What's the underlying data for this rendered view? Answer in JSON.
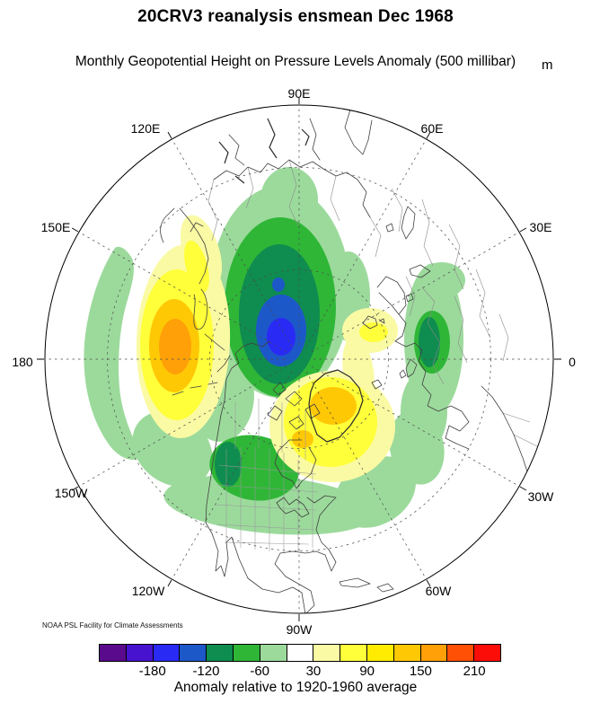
{
  "title": "20CRV3 reanalysis ensmean Dec 1968",
  "subtitle": "Monthly Geopotential Height on Pressure Levels Anomaly (500 millibar)",
  "units_label": "m",
  "credit": "NOAA PSL Facility for Climate Assessments",
  "map": {
    "lon_labels": [
      "90E",
      "60E",
      "30E",
      "0",
      "30W",
      "60W",
      "90W",
      "120W",
      "150W",
      "180",
      "150E",
      "120E"
    ]
  },
  "colorbar": {
    "caption": "Anomaly relative to 1920-1960 average",
    "tick_labels": [
      "-180",
      "-120",
      "-60",
      "30",
      "90",
      "150",
      "210"
    ],
    "tick_boundary_indices": [
      2,
      4,
      6,
      8,
      10,
      12,
      14
    ],
    "colors": [
      "#5A0A8C",
      "#4713CF",
      "#2A2AF5",
      "#1D58C9",
      "#0F8C4F",
      "#2FB637",
      "#9CDA9C",
      "#FFFFFF",
      "#FAFAA4",
      "#FFFF3A",
      "#FFEC00",
      "#FFC805",
      "#FFA008",
      "#FF5005",
      "#FC0D07"
    ]
  },
  "chart_data": {
    "type": "heatmap",
    "subtype": "filled_contour_map",
    "dataset": "20CRV3 reanalysis ensmean",
    "month": "Dec 1968",
    "variable": "Monthly Geopotential Height on Pressure Levels Anomaly",
    "pressure_level": "500 millibar",
    "units": "m",
    "baseline": "1920-1960 average",
    "projection": "north_polar_stereographic",
    "map_extent_min_latitude_deg": 15,
    "levels_m": [
      -210,
      -180,
      -150,
      -120,
      -90,
      -60,
      -30,
      30,
      60,
      90,
      120,
      150,
      180,
      210
    ],
    "palette": [
      "#5A0A8C",
      "#4713CF",
      "#2A2AF5",
      "#1D58C9",
      "#0F8C4F",
      "#2FB637",
      "#9CDA9C",
      "#FFFFFF",
      "#FAFAA4",
      "#FFFF3A",
      "#FFEC00",
      "#FFC805",
      "#FFA008",
      "#FF5005",
      "#FC0D07"
    ],
    "graticule": {
      "meridian_spacing_deg": 30,
      "labeled_meridians": [
        "90E",
        "60E",
        "30E",
        "0",
        "30W",
        "60W",
        "90W",
        "120W",
        "150W",
        "180",
        "150E",
        "120E"
      ],
      "dashed_parallels_deg_N": [
        30,
        60
      ],
      "style": "dashed"
    },
    "legend_position": "bottom",
    "anomaly_centers": [
      {
        "region": "Bering Sea / Aleutians (west of Alaska)",
        "sign": "positive",
        "peak_range_m": "150 to 180"
      },
      {
        "region": "central Arctic / Siberian sector near pole",
        "sign": "negative",
        "peak_range_m": "-180 to -150"
      },
      {
        "region": "British Columbia / Pacific Northwest",
        "sign": "negative",
        "peak_range_m": "-120 to -90"
      },
      {
        "region": "eastern Europe / western Russia",
        "sign": "negative",
        "peak_range_m": "-120 to -90"
      },
      {
        "region": "Hudson Bay / Baffin / Greenland",
        "sign": "positive",
        "peak_range_m": "120 to 150"
      },
      {
        "region": "Svalbard / Barents Sea",
        "sign": "positive",
        "peak_range_m": "60 to 90"
      },
      {
        "region": "western North Pacific band near 180",
        "sign": "negative",
        "peak_range_m": "-60 to -30"
      },
      {
        "region": "northern United States to North Atlantic band",
        "sign": "negative",
        "peak_range_m": "-60 to -30"
      }
    ]
  }
}
